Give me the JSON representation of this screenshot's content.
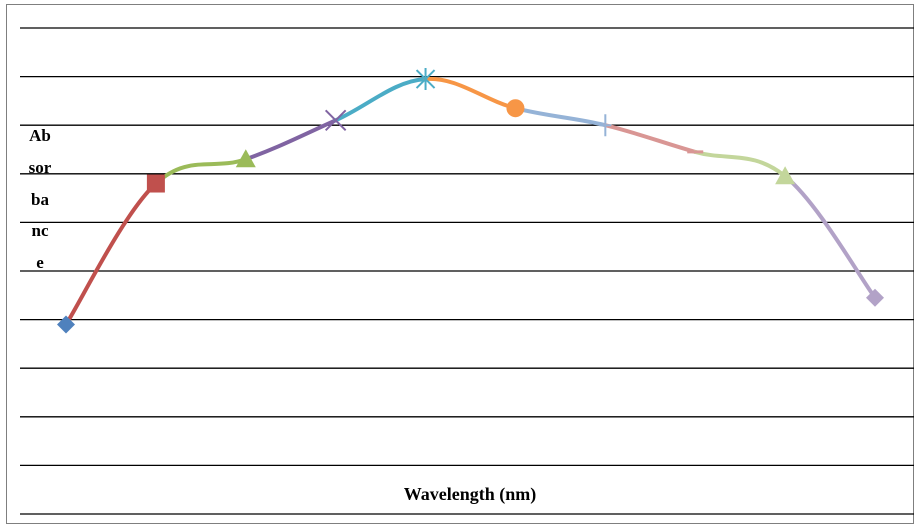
{
  "chart_data": {
    "type": "line",
    "title": "",
    "xlabel": "Wavelength (nm)",
    "ylabel": "Absorbance",
    "grid": true,
    "legend": "none",
    "ylim": [
      0,
      10
    ],
    "points": [
      {
        "x": 1,
        "y": 3.9,
        "color": "#4f81bd",
        "marker": "diamond"
      },
      {
        "x": 2,
        "y": 6.8,
        "color": "#c0504d",
        "marker": "square"
      },
      {
        "x": 3,
        "y": 7.3,
        "color": "#9bbb59",
        "marker": "triangle"
      },
      {
        "x": 4,
        "y": 8.1,
        "color": "#8064a2",
        "marker": "x"
      },
      {
        "x": 5,
        "y": 8.95,
        "color": "#4bacc6",
        "marker": "star"
      },
      {
        "x": 6,
        "y": 8.35,
        "color": "#f79646",
        "marker": "circle"
      },
      {
        "x": 7,
        "y": 8.0,
        "color": "#95b3d7",
        "marker": "plus"
      },
      {
        "x": 8,
        "y": 7.45,
        "color": "#d99694",
        "marker": "dash"
      },
      {
        "x": 9,
        "y": 6.95,
        "color": "#c3d69b",
        "marker": "triangle"
      },
      {
        "x": 10,
        "y": 4.45,
        "color": "#b2a2c7",
        "marker": "diamond"
      }
    ]
  }
}
